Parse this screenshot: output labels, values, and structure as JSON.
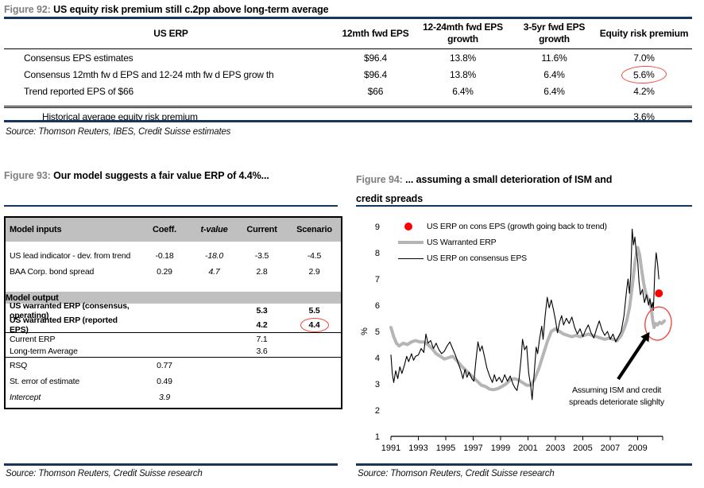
{
  "fig92": {
    "label": "Figure 92:",
    "title": "US equity risk premium still c.2pp above long-term average",
    "table": {
      "row_header": "US ERP",
      "columns": [
        "12mth fwd EPS",
        "12-24mth fwd EPS growth",
        "3-5yr fwd EPS growth",
        "Equity risk premium"
      ],
      "rows": [
        {
          "label": "Consensus EPS estimates",
          "values": [
            "$96.4",
            "13.8%",
            "11.6%",
            "7.0%"
          ]
        },
        {
          "label": "Consensus 12mth fw d EPS and 12-24 mth fw d EPS grow th",
          "values": [
            "$96.4",
            "13.8%",
            "6.4%",
            "5.6%"
          ],
          "circled": 3
        },
        {
          "label": "Trend reported EPS of $66",
          "values": [
            "$66",
            "6.4%",
            "6.4%",
            "4.2%"
          ]
        }
      ],
      "footer": {
        "label": "Historical average equity risk premium",
        "value": "3.6%"
      }
    },
    "source": "Source: Thomson Reuters, IBES, Credit Suisse estimates"
  },
  "fig93": {
    "label": "Figure 93:",
    "title": "Our model suggests a fair value ERP of 4.4%...",
    "table": {
      "header_label": "Model inputs",
      "header_cols": [
        "Coeff.",
        "t-value",
        "Current",
        "Scenario"
      ],
      "output_band": "Model output",
      "rows": [
        {
          "label": "US lead indicator - dev. from trend",
          "c1": "-0.18",
          "c2": "-18.0",
          "c3": "-3.5",
          "c4": "-4.5",
          "section": "inputs"
        },
        {
          "label": "BAA Corp. bond spread",
          "c1": "0.29",
          "c2": "4.7",
          "c3": "2.8",
          "c4": "2.9",
          "section": "inputs"
        },
        {
          "label": "US warranted ERP (consensus, operating)",
          "c3": "5.3",
          "c4": "5.5",
          "section": "output"
        },
        {
          "label": "US warranted ERP (reported EPS)",
          "c3": "4.2",
          "c4": "4.4",
          "circled": "c4",
          "section": "output"
        },
        {
          "label": "Current ERP",
          "c3": "7.1",
          "section": "erp"
        },
        {
          "label": "Long-term Average",
          "c3": "3.6",
          "section": "erp"
        },
        {
          "label": "RSQ",
          "c1": "0.77",
          "section": "stats"
        },
        {
          "label": "St. error of estimate",
          "c1": "0.49",
          "section": "stats"
        },
        {
          "label": "Intercept",
          "c1": "3.9",
          "italic": true,
          "section": "stats"
        }
      ]
    },
    "source": "Source: Thomson Reuters, Credit Suisse research"
  },
  "fig94": {
    "label": "Figure 94:",
    "title_line1": "... assuming a small deterioration of ISM and",
    "title_line2": "credit spreads",
    "source": "Source: Thomson Reuters, Credit Suisse research",
    "chart_data": {
      "type": "line",
      "title": "... assuming a small deterioration of ISM and credit spreads",
      "ylabel": "%",
      "ylim": [
        1,
        9
      ],
      "yticks": [
        1,
        2,
        3,
        4,
        5,
        6,
        7,
        8,
        9
      ],
      "xticks": [
        1991,
        1993,
        1995,
        1997,
        1999,
        2001,
        2003,
        2005,
        2007,
        2009
      ],
      "xlim": [
        1991,
        2010.6
      ],
      "grid": false,
      "legend_position": "top-left",
      "legend": [
        {
          "label": "US ERP on cons EPS (growth going back to trend)",
          "marker": "dot",
          "color": "#fe0000"
        },
        {
          "label": "US Warranted ERP",
          "marker": "thick-line",
          "color": "#b5b5b5"
        },
        {
          "label": "US ERP on consensus EPS",
          "marker": "thin-line",
          "color": "#000000"
        }
      ],
      "annotation_line1": "Assuming ISM and credit",
      "annotation_line2": "spreads deteriorate slighlty",
      "red_dot": {
        "x": 2010.55,
        "y": 6.45,
        "color": "#fe0000"
      },
      "highlight_ellipse": {
        "x": 2010.5,
        "y": 5.3,
        "color": "#ef4a41"
      },
      "series": [
        {
          "name": "US Warranted ERP",
          "color": "#b5b5b5",
          "width": 4,
          "points": [
            [
              1991.0,
              5.15
            ],
            [
              1991.2,
              4.8
            ],
            [
              1991.4,
              4.55
            ],
            [
              1991.6,
              4.45
            ],
            [
              1991.9,
              4.55
            ],
            [
              1992.2,
              4.5
            ],
            [
              1992.5,
              4.6
            ],
            [
              1992.8,
              4.65
            ],
            [
              1993.1,
              4.6
            ],
            [
              1993.4,
              4.6
            ],
            [
              1993.7,
              4.5
            ],
            [
              1994.0,
              4.35
            ],
            [
              1994.3,
              4.15
            ],
            [
              1994.6,
              4.05
            ],
            [
              1994.9,
              3.95
            ],
            [
              1995.2,
              4.0
            ],
            [
              1995.5,
              4.05
            ],
            [
              1995.8,
              3.9
            ],
            [
              1996.1,
              3.7
            ],
            [
              1996.4,
              3.55
            ],
            [
              1996.7,
              3.4
            ],
            [
              1997.0,
              3.25
            ],
            [
              1997.3,
              3.1
            ],
            [
              1997.6,
              2.95
            ],
            [
              1997.9,
              2.9
            ],
            [
              1998.2,
              2.8
            ],
            [
              1998.5,
              2.78
            ],
            [
              1998.8,
              2.82
            ],
            [
              1999.1,
              2.9
            ],
            [
              1999.4,
              3.0
            ],
            [
              1999.7,
              3.15
            ],
            [
              2000.0,
              3.2
            ],
            [
              2000.3,
              3.15
            ],
            [
              2000.6,
              3.05
            ],
            [
              2000.9,
              2.95
            ],
            [
              2001.2,
              2.95
            ],
            [
              2001.5,
              3.2
            ],
            [
              2001.8,
              3.6
            ],
            [
              2002.1,
              4.1
            ],
            [
              2002.4,
              4.6
            ],
            [
              2002.7,
              5.0
            ],
            [
              2003.0,
              5.1
            ],
            [
              2003.3,
              5.0
            ],
            [
              2003.6,
              4.9
            ],
            [
              2003.9,
              4.85
            ],
            [
              2004.2,
              4.8
            ],
            [
              2004.5,
              4.85
            ],
            [
              2004.8,
              4.8
            ],
            [
              2005.1,
              4.85
            ],
            [
              2005.4,
              4.9
            ],
            [
              2005.7,
              4.85
            ],
            [
              2006.0,
              4.8
            ],
            [
              2006.3,
              4.75
            ],
            [
              2006.6,
              4.7
            ],
            [
              2006.9,
              4.75
            ],
            [
              2007.2,
              4.7
            ],
            [
              2007.5,
              4.65
            ],
            [
              2007.8,
              4.85
            ],
            [
              2008.0,
              5.1
            ],
            [
              2008.2,
              5.4
            ],
            [
              2008.4,
              5.9
            ],
            [
              2008.6,
              6.7
            ],
            [
              2008.8,
              7.6
            ],
            [
              2009.0,
              8.2
            ],
            [
              2009.15,
              7.9
            ],
            [
              2009.3,
              7.3
            ],
            [
              2009.45,
              6.8
            ],
            [
              2009.6,
              6.45
            ],
            [
              2009.75,
              6.25
            ],
            [
              2009.9,
              6.1
            ],
            [
              2010.0,
              5.85
            ],
            [
              2010.1,
              5.4
            ],
            [
              2010.2,
              5.15
            ],
            [
              2010.3,
              5.3
            ],
            [
              2010.45,
              5.25
            ],
            [
              2010.6,
              5.35
            ],
            [
              2010.75,
              5.3
            ],
            [
              2010.95,
              5.4
            ]
          ]
        },
        {
          "name": "US ERP on consensus EPS",
          "color": "#000000",
          "width": 1.1,
          "points": [
            [
              1991.0,
              4.1
            ],
            [
              1991.1,
              3.4
            ],
            [
              1991.2,
              3.05
            ],
            [
              1991.35,
              3.5
            ],
            [
              1991.5,
              3.2
            ],
            [
              1991.65,
              3.65
            ],
            [
              1991.8,
              3.4
            ],
            [
              1992.0,
              3.75
            ],
            [
              1992.15,
              4.05
            ],
            [
              1992.3,
              3.85
            ],
            [
              1992.5,
              4.15
            ],
            [
              1992.65,
              3.9
            ],
            [
              1992.8,
              4.05
            ],
            [
              1993.0,
              4.1
            ],
            [
              1993.2,
              4.35
            ],
            [
              1993.4,
              4.2
            ],
            [
              1993.55,
              4.9
            ],
            [
              1993.7,
              4.55
            ],
            [
              1993.9,
              4.65
            ],
            [
              1994.1,
              4.35
            ],
            [
              1994.3,
              4.55
            ],
            [
              1994.5,
              4.3
            ],
            [
              1994.7,
              4.15
            ],
            [
              1994.9,
              4.25
            ],
            [
              1995.1,
              4.45
            ],
            [
              1995.3,
              4.6
            ],
            [
              1995.5,
              4.35
            ],
            [
              1995.7,
              4.1
            ],
            [
              1995.9,
              3.8
            ],
            [
              1996.1,
              3.5
            ],
            [
              1996.25,
              3.2
            ],
            [
              1996.4,
              3.55
            ],
            [
              1996.55,
              3.25
            ],
            [
              1996.7,
              3.45
            ],
            [
              1996.9,
              3.2
            ],
            [
              1997.05,
              3.1
            ],
            [
              1997.2,
              3.9
            ],
            [
              1997.35,
              4.6
            ],
            [
              1997.5,
              4.25
            ],
            [
              1997.65,
              4.45
            ],
            [
              1997.8,
              4.1
            ],
            [
              1998.0,
              3.6
            ],
            [
              1998.2,
              3.3
            ],
            [
              1998.4,
              3.05
            ],
            [
              1998.55,
              3.35
            ],
            [
              1998.7,
              3.1
            ],
            [
              1998.9,
              3.25
            ],
            [
              1999.1,
              3.05
            ],
            [
              1999.3,
              3.35
            ],
            [
              1999.5,
              3.1
            ],
            [
              1999.7,
              3.3
            ],
            [
              1999.9,
              3.0
            ],
            [
              2000.05,
              2.85
            ],
            [
              2000.2,
              2.75
            ],
            [
              2000.35,
              3.2
            ],
            [
              2000.5,
              4.0
            ],
            [
              2000.6,
              4.7
            ],
            [
              2000.75,
              4.3
            ],
            [
              2000.9,
              4.45
            ],
            [
              2001.05,
              3.4
            ],
            [
              2001.2,
              2.9
            ],
            [
              2001.3,
              2.4
            ],
            [
              2001.45,
              3.4
            ],
            [
              2001.6,
              4.4
            ],
            [
              2001.7,
              4.15
            ],
            [
              2001.85,
              4.75
            ],
            [
              2002.0,
              5.2
            ],
            [
              2002.1,
              4.7
            ],
            [
              2002.25,
              5.6
            ],
            [
              2002.4,
              6.3
            ],
            [
              2002.55,
              5.9
            ],
            [
              2002.7,
              6.2
            ],
            [
              2002.85,
              5.85
            ],
            [
              2003.0,
              5.45
            ],
            [
              2003.15,
              4.95
            ],
            [
              2003.3,
              5.35
            ],
            [
              2003.45,
              5.6
            ],
            [
              2003.6,
              5.25
            ],
            [
              2003.8,
              5.5
            ],
            [
              2004.0,
              5.3
            ],
            [
              2004.2,
              5.55
            ],
            [
              2004.4,
              5.15
            ],
            [
              2004.6,
              4.9
            ],
            [
              2004.8,
              5.1
            ],
            [
              2005.0,
              4.8
            ],
            [
              2005.2,
              5.05
            ],
            [
              2005.4,
              5.25
            ],
            [
              2005.6,
              4.95
            ],
            [
              2005.8,
              4.75
            ],
            [
              2006.0,
              5.1
            ],
            [
              2006.2,
              5.4
            ],
            [
              2006.4,
              5.05
            ],
            [
              2006.6,
              4.85
            ],
            [
              2006.8,
              5.0
            ],
            [
              2007.0,
              4.7
            ],
            [
              2007.2,
              4.9
            ],
            [
              2007.4,
              4.6
            ],
            [
              2007.6,
              4.8
            ],
            [
              2007.8,
              5.0
            ],
            [
              2008.0,
              5.6
            ],
            [
              2008.1,
              6.1
            ],
            [
              2008.2,
              6.6
            ],
            [
              2008.3,
              7.0
            ],
            [
              2008.4,
              6.45
            ],
            [
              2008.5,
              7.2
            ],
            [
              2008.6,
              8.9
            ],
            [
              2008.7,
              8.3
            ],
            [
              2008.8,
              8.6
            ],
            [
              2008.9,
              8.0
            ],
            [
              2009.0,
              7.7
            ],
            [
              2009.1,
              6.9
            ],
            [
              2009.2,
              6.4
            ],
            [
              2009.35,
              6.6
            ],
            [
              2009.5,
              6.1
            ],
            [
              2009.65,
              6.4
            ],
            [
              2009.8,
              6.0
            ],
            [
              2009.9,
              6.25
            ],
            [
              2010.0,
              5.9
            ],
            [
              2010.1,
              6.1
            ],
            [
              2010.15,
              5.8
            ],
            [
              2010.25,
              7.3
            ],
            [
              2010.35,
              8.0
            ],
            [
              2010.45,
              7.6
            ],
            [
              2010.55,
              7.0
            ]
          ]
        }
      ]
    }
  }
}
